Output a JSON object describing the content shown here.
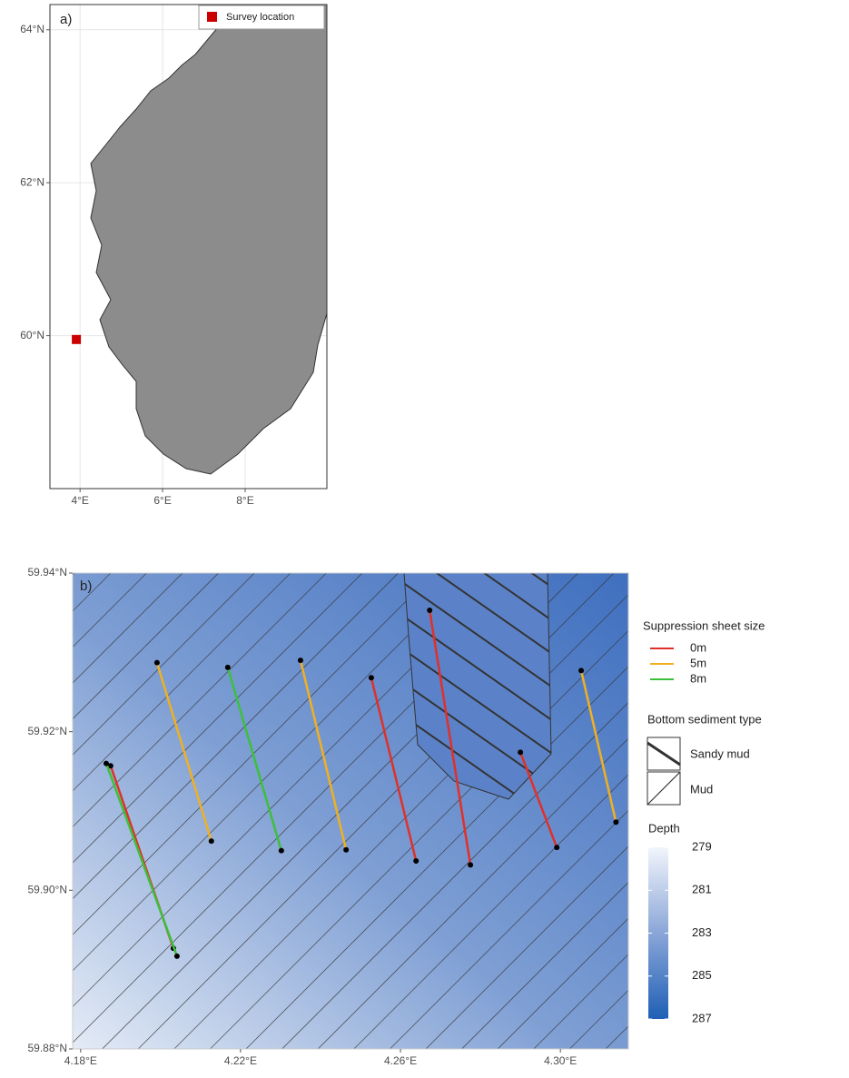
{
  "panel_a": {
    "label": "a)",
    "xlim": [
      3.27,
      9.98
    ],
    "ylim": [
      58.0,
      64.33
    ],
    "xticks": [
      {
        "value": 4,
        "label": "4°E"
      },
      {
        "value": 6,
        "label": "6°E"
      },
      {
        "value": 8,
        "label": "8°E"
      }
    ],
    "yticks": [
      {
        "value": 60,
        "label": "60°N"
      },
      {
        "value": 62,
        "label": "62°N"
      },
      {
        "value": 64,
        "label": "64°N"
      }
    ],
    "survey_location": {
      "name": "Survey location",
      "color": "#cc0000",
      "lon": 3.91,
      "lat": 59.95
    }
  },
  "panel_b": {
    "label": "b)",
    "xlim": [
      4.178,
      4.317
    ],
    "ylim": [
      59.88,
      59.94
    ],
    "xticks": [
      {
        "value": 4.18,
        "label": "4.18°E"
      },
      {
        "value": 4.22,
        "label": "4.22°E"
      },
      {
        "value": 4.26,
        "label": "4.26°E"
      },
      {
        "value": 4.3,
        "label": "4.30°E"
      }
    ],
    "yticks": [
      {
        "value": 59.88,
        "label": "59.88°N"
      },
      {
        "value": 59.9,
        "label": "59.90°N"
      },
      {
        "value": 59.92,
        "label": "59.92°N"
      },
      {
        "value": 59.94,
        "label": "59.94°N"
      }
    ],
    "sheet_legend_title": "Suppression sheet size",
    "series": [
      {
        "name": "0m",
        "color": "#e0302a",
        "transects": [
          {
            "lon": [
              4.1875,
              4.2032
            ],
            "lat": [
              59.9157,
              59.8927
            ]
          },
          {
            "lon": [
              4.2527,
              4.2639
            ],
            "lat": [
              59.9268,
              59.9037
            ]
          },
          {
            "lon": [
              4.2673,
              4.2775
            ],
            "lat": [
              59.9353,
              59.9032
            ]
          },
          {
            "lon": [
              4.29,
              4.2991
            ],
            "lat": [
              59.9174,
              59.9054
            ]
          }
        ]
      },
      {
        "name": "5m",
        "color": "#f0b020",
        "transects": [
          {
            "lon": [
              4.1991,
              4.2127
            ],
            "lat": [
              59.9287,
              59.9062
            ]
          },
          {
            "lon": [
              4.235,
              4.2464
            ],
            "lat": [
              59.929,
              59.9051
            ]
          },
          {
            "lon": [
              4.3052,
              4.3139
            ],
            "lat": [
              59.9277,
              59.9086
            ]
          }
        ]
      },
      {
        "name": "8m",
        "color": "#3cc03c",
        "transects": [
          {
            "lon": [
              4.1864,
              4.2041
            ],
            "lat": [
              59.916,
              59.8917
            ]
          },
          {
            "lon": [
              4.2168,
              4.2302
            ],
            "lat": [
              59.9281,
              59.905
            ]
          }
        ]
      }
    ],
    "sediment_legend_title": "Bottom sediment type",
    "sediment_types": [
      "Sandy mud",
      "Mud"
    ],
    "depth": {
      "title": "Depth",
      "range": [
        279,
        287
      ],
      "ticks": [
        279,
        281,
        283,
        285,
        287
      ]
    }
  }
}
